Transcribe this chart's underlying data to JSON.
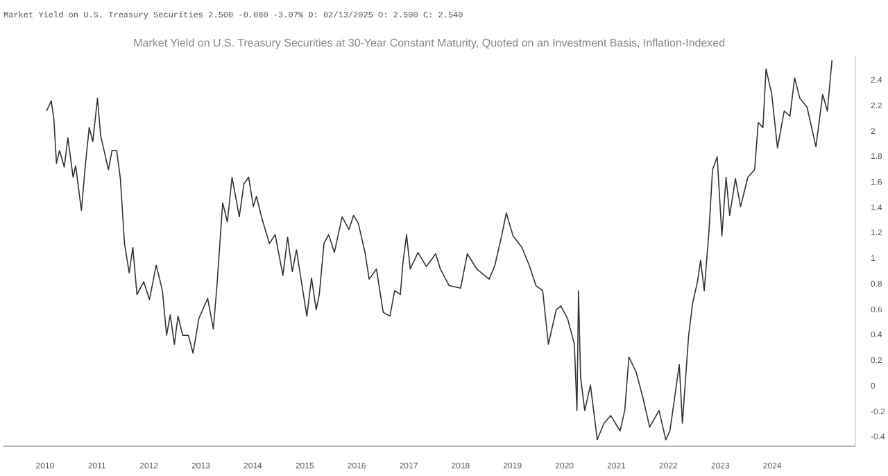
{
  "chart_data": {
    "type": "line",
    "title": "Market Yield on U.S. Treasury Securities at 30-Year Constant Maturity, Quoted on an Investment Basis, Inflation-Indexed",
    "subtitle": "Market Yield on U.S. Treasury Securities 2.500 -0.080 -3.07% D: 02/13/2025 O: 2.500 C: 2.540",
    "x": [
      2010.03,
      2010.12,
      2010.17,
      2010.22,
      2010.28,
      2010.37,
      2010.44,
      2010.54,
      2010.59,
      2010.7,
      2010.78,
      2010.85,
      2010.92,
      2011.01,
      2011.07,
      2011.22,
      2011.29,
      2011.38,
      2011.45,
      2011.53,
      2011.62,
      2011.69,
      2011.77,
      2011.9,
      2012.01,
      2012.14,
      2012.26,
      2012.34,
      2012.41,
      2012.49,
      2012.56,
      2012.65,
      2012.76,
      2012.85,
      2012.96,
      2013.13,
      2013.24,
      2013.31,
      2013.42,
      2013.51,
      2013.6,
      2013.74,
      2013.83,
      2013.92,
      2014.01,
      2014.07,
      2014.18,
      2014.32,
      2014.43,
      2014.58,
      2014.67,
      2014.76,
      2014.84,
      2015.04,
      2015.13,
      2015.22,
      2015.28,
      2015.37,
      2015.46,
      2015.57,
      2015.72,
      2015.85,
      2015.94,
      2016.03,
      2016.16,
      2016.24,
      2016.38,
      2016.51,
      2016.64,
      2016.73,
      2016.84,
      2016.89,
      2016.96,
      2017.03,
      2017.18,
      2017.34,
      2017.52,
      2017.61,
      2017.78,
      2018.0,
      2018.13,
      2018.31,
      2018.55,
      2018.66,
      2018.79,
      2018.88,
      2019.01,
      2019.18,
      2019.32,
      2019.45,
      2019.58,
      2019.69,
      2019.84,
      2019.93,
      2020.06,
      2020.19,
      2020.24,
      2020.27,
      2020.31,
      2020.39,
      2020.5,
      2020.63,
      2020.76,
      2020.89,
      2021.07,
      2021.16,
      2021.24,
      2021.38,
      2021.51,
      2021.64,
      2021.82,
      2021.95,
      2022.03,
      2022.12,
      2022.21,
      2022.27,
      2022.39,
      2022.47,
      2022.56,
      2022.62,
      2022.69,
      2022.78,
      2022.85,
      2022.94,
      2023.03,
      2023.11,
      2023.18,
      2023.29,
      2023.39,
      2023.53,
      2023.66,
      2023.73,
      2023.82,
      2023.88,
      2023.99,
      2024.1,
      2024.23,
      2024.34,
      2024.43,
      2024.53,
      2024.67,
      2024.84,
      2024.97,
      2025.06,
      2025.15
    ],
    "series": [
      {
        "color": "#333333",
        "values": [
          2.15,
          2.23,
          2.09,
          1.74,
          1.84,
          1.71,
          1.94,
          1.63,
          1.72,
          1.37,
          1.74,
          2.02,
          1.91,
          2.25,
          1.96,
          1.69,
          1.84,
          1.84,
          1.62,
          1.11,
          0.88,
          1.08,
          0.71,
          0.81,
          0.67,
          0.94,
          0.74,
          0.39,
          0.55,
          0.32,
          0.54,
          0.39,
          0.39,
          0.25,
          0.52,
          0.68,
          0.44,
          0.78,
          1.43,
          1.28,
          1.63,
          1.32,
          1.58,
          1.63,
          1.4,
          1.48,
          1.3,
          1.11,
          1.18,
          0.86,
          1.16,
          0.89,
          1.06,
          0.54,
          0.84,
          0.59,
          0.71,
          1.11,
          1.18,
          1.04,
          1.32,
          1.22,
          1.33,
          1.27,
          1.04,
          0.83,
          0.91,
          0.57,
          0.54,
          0.74,
          0.71,
          0.96,
          1.18,
          0.91,
          1.04,
          0.93,
          1.03,
          0.91,
          0.78,
          0.76,
          1.03,
          0.91,
          0.83,
          0.94,
          1.17,
          1.35,
          1.17,
          1.08,
          0.94,
          0.78,
          0.74,
          0.32,
          0.59,
          0.62,
          0.52,
          0.32,
          -0.2,
          0.74,
          0.06,
          -0.2,
          0.0,
          -0.43,
          -0.3,
          -0.24,
          -0.36,
          -0.2,
          0.22,
          0.1,
          -0.1,
          -0.33,
          -0.2,
          -0.43,
          -0.36,
          -0.1,
          0.16,
          -0.3,
          0.39,
          0.65,
          0.81,
          0.98,
          0.74,
          1.2,
          1.69,
          1.79,
          1.17,
          1.63,
          1.33,
          1.62,
          1.4,
          1.63,
          1.69,
          2.06,
          2.02,
          2.48,
          2.28,
          1.86,
          2.15,
          2.11,
          2.41,
          2.25,
          2.18,
          1.87,
          2.28,
          2.15,
          2.55
        ]
      }
    ],
    "xlim": [
      2009.2,
      2025.6
    ],
    "ylim": [
      -0.48,
      2.58
    ],
    "xticks": [
      2010,
      2011,
      2012,
      2013,
      2014,
      2015,
      2016,
      2017,
      2018,
      2019,
      2020,
      2021,
      2022,
      2023,
      2024
    ],
    "yticks": [
      -0.4,
      -0.2,
      0,
      0.2,
      0.4,
      0.6,
      0.8,
      1,
      1.2,
      1.4,
      1.6,
      1.8,
      2,
      2.2,
      2.4
    ],
    "grid": false,
    "marker": "none",
    "line_style": "solid"
  }
}
